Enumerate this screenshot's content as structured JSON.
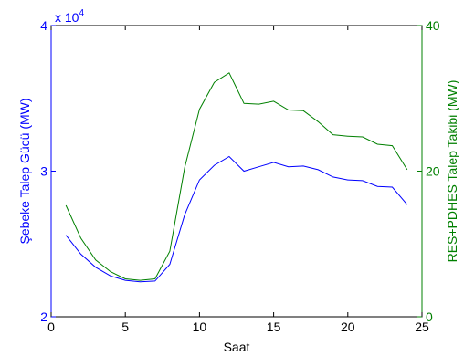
{
  "chart_data": {
    "type": "line",
    "xlabel": "Saat",
    "ylabel_left": "Şebeke Talep Gücü (MW)",
    "ylabel_right": "RES+PDHES Talep Takibi (MW)",
    "left_exponent_label": "x 10",
    "left_exponent_power": "4",
    "xlim": [
      0,
      25
    ],
    "ylim_left": [
      2,
      4
    ],
    "ylim_right": [
      0,
      40
    ],
    "x_ticks": [
      0,
      5,
      10,
      15,
      20,
      25
    ],
    "y_left_ticks": [
      2,
      3,
      4
    ],
    "y_right_ticks": [
      0,
      20,
      40
    ],
    "grid": false,
    "colors": {
      "left": "#0000ff",
      "right": "#008000",
      "axes": "#000000"
    },
    "series": [
      {
        "axis": "left",
        "x": [
          1,
          2,
          3,
          4,
          5,
          6,
          7,
          8,
          9,
          10,
          11,
          12,
          13,
          14,
          15,
          16,
          17,
          18,
          19,
          20,
          21,
          22,
          23,
          24
        ],
        "values": [
          2.56,
          2.43,
          2.34,
          2.28,
          2.25,
          2.24,
          2.245,
          2.36,
          2.7,
          2.94,
          3.04,
          3.1,
          3.0,
          3.03,
          3.06,
          3.03,
          3.035,
          3.01,
          2.96,
          2.94,
          2.935,
          2.895,
          2.89,
          2.77
        ]
      },
      {
        "axis": "right",
        "x": [
          1,
          2,
          3,
          4,
          5,
          6,
          7,
          8,
          9,
          10,
          11,
          12,
          13,
          14,
          15,
          16,
          17,
          18,
          19,
          20,
          21,
          22,
          23,
          24
        ],
        "values": [
          15.3,
          10.8,
          7.8,
          6.2,
          5.2,
          5.0,
          5.2,
          9.0,
          20.5,
          28.5,
          32.2,
          33.5,
          29.3,
          29.2,
          29.6,
          28.4,
          28.3,
          26.8,
          25.0,
          24.8,
          24.7,
          23.7,
          23.5,
          20.2
        ]
      }
    ]
  }
}
